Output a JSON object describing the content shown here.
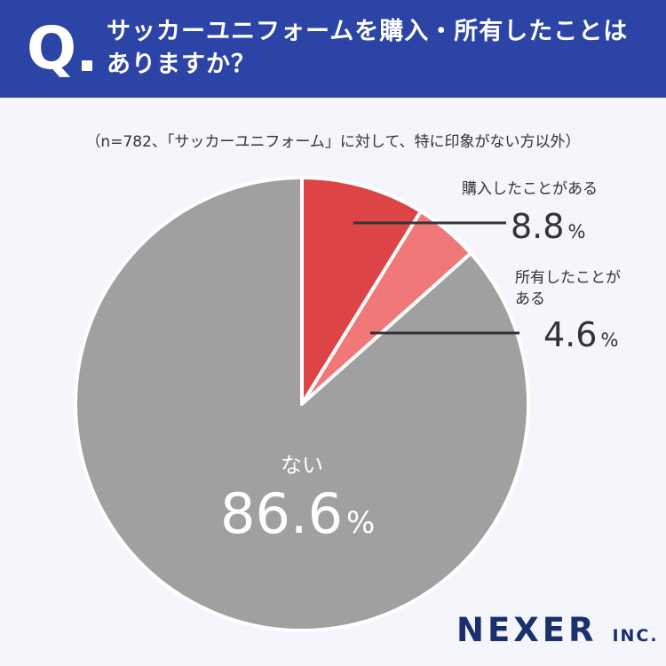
{
  "header": {
    "q_mark": "Q",
    "question": "サッカーユニフォームを購入・所有したことはありますか？"
  },
  "note": "（n=782、「サッカーユニフォーム」に対して、特に印象がない方以外）",
  "chart_data": {
    "type": "pie",
    "title": "",
    "start": "12 o'clock, clockwise",
    "slices": [
      {
        "label": "購入したことがある",
        "label_lines": [
          "購入したことがある"
        ],
        "value": 8.8,
        "display": "8.8",
        "unit": "%",
        "color": "#dc4446"
      },
      {
        "label": "所有したことがある",
        "label_lines": [
          "所有したことが",
          "ある"
        ],
        "value": 4.6,
        "display": "4.6",
        "unit": "%",
        "color": "#f07878"
      },
      {
        "label": "ない",
        "label_lines": [
          "ない"
        ],
        "value": 86.6,
        "display": "86.6",
        "unit": "%",
        "color": "#a0a0a0"
      }
    ],
    "separator_color": "#ffffff",
    "leader_line_color": "#333333"
  },
  "logo": {
    "name": "NEXER",
    "suffix": "INC."
  },
  "colors": {
    "header_bg": "#2c44a5",
    "page_bg": "#f4f6fc",
    "logo": "#1a2f6e"
  }
}
